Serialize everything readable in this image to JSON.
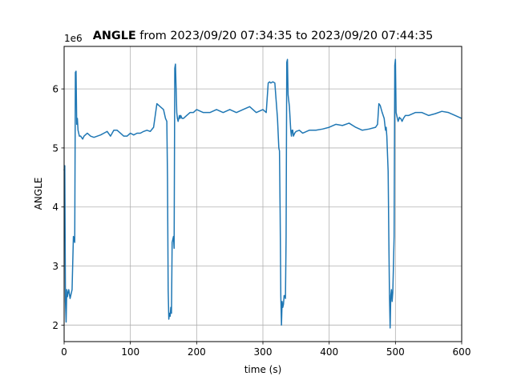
{
  "chart_data": {
    "type": "line",
    "title_bold": "ANGLE",
    "title_rest": " from 2023/09/20 07:34:35 to 2023/09/20 07:44:35",
    "xlabel": "time (s)",
    "ylabel": "ANGLE",
    "y_offset_label": "1e6",
    "xlim": [
      0,
      600
    ],
    "ylim": [
      1.72,
      6.72
    ],
    "x_ticks": [
      0,
      100,
      200,
      300,
      400,
      500,
      600
    ],
    "y_ticks": [
      2,
      3,
      4,
      5,
      6
    ],
    "grid": true,
    "line_color": "#1f77b4",
    "series": [
      {
        "x": [
          0,
          1,
          2,
          3,
          4,
          5,
          6,
          7,
          9,
          12,
          14,
          16,
          17,
          18,
          19,
          20,
          21,
          22,
          23,
          25,
          28,
          30,
          35,
          40,
          45,
          50,
          55,
          60,
          65,
          70,
          75,
          80,
          85,
          90,
          95,
          100,
          105,
          110,
          115,
          120,
          125,
          130,
          135,
          140,
          145,
          150,
          153,
          155,
          156,
          157,
          158,
          159,
          160,
          161,
          162,
          163,
          165,
          166,
          167,
          168,
          170,
          171,
          172,
          173,
          174,
          175,
          176,
          178,
          180,
          185,
          190,
          195,
          200,
          210,
          220,
          230,
          240,
          250,
          260,
          270,
          280,
          290,
          300,
          305,
          308,
          310,
          312,
          315,
          318,
          320,
          322,
          324,
          325,
          326,
          327,
          328,
          329,
          330,
          331,
          332,
          333,
          334,
          335,
          336,
          337,
          338,
          339,
          340,
          341,
          342,
          343,
          344,
          345,
          346,
          348,
          350,
          355,
          360,
          370,
          380,
          390,
          400,
          410,
          420,
          430,
          440,
          450,
          460,
          470,
          473,
          475,
          477,
          480,
          483,
          485,
          486,
          487,
          488,
          489,
          490,
          491,
          492,
          493,
          494,
          495,
          496,
          497,
          498,
          499,
          500,
          501,
          502,
          503,
          504,
          505,
          506,
          507,
          508,
          510,
          512,
          515,
          520,
          530,
          540,
          550,
          560,
          570,
          580,
          590,
          600
        ],
        "values": [
          4.62,
          4.7,
          2.4,
          2.05,
          2.6,
          2.48,
          2.55,
          2.6,
          2.45,
          2.6,
          3.5,
          3.4,
          6.28,
          6.3,
          5.4,
          5.5,
          5.3,
          5.25,
          5.2,
          5.2,
          5.15,
          5.2,
          5.25,
          5.2,
          5.18,
          5.2,
          5.22,
          5.25,
          5.28,
          5.2,
          5.3,
          5.3,
          5.25,
          5.2,
          5.2,
          5.25,
          5.22,
          5.25,
          5.25,
          5.28,
          5.3,
          5.28,
          5.35,
          5.75,
          5.7,
          5.65,
          5.5,
          5.45,
          4.5,
          2.6,
          2.1,
          2.2,
          2.15,
          2.3,
          2.2,
          3.4,
          3.5,
          3.3,
          6.35,
          6.42,
          5.6,
          5.5,
          5.45,
          5.5,
          5.55,
          5.5,
          5.55,
          5.5,
          5.5,
          5.55,
          5.6,
          5.6,
          5.65,
          5.6,
          5.6,
          5.65,
          5.6,
          5.65,
          5.6,
          5.65,
          5.7,
          5.6,
          5.65,
          5.6,
          6.1,
          6.12,
          6.1,
          6.12,
          6.1,
          5.8,
          5.5,
          5.0,
          4.95,
          3.9,
          2.5,
          2.0,
          2.4,
          2.3,
          2.35,
          2.5,
          2.5,
          2.45,
          3.5,
          6.45,
          6.5,
          5.9,
          5.8,
          5.7,
          5.5,
          5.3,
          5.2,
          5.3,
          5.3,
          5.2,
          5.25,
          5.28,
          5.3,
          5.25,
          5.3,
          5.3,
          5.32,
          5.35,
          5.4,
          5.38,
          5.42,
          5.35,
          5.3,
          5.32,
          5.35,
          5.4,
          5.75,
          5.72,
          5.6,
          5.5,
          5.3,
          5.35,
          5.2,
          4.9,
          4.6,
          3.5,
          2.5,
          1.95,
          2.5,
          2.6,
          2.4,
          2.55,
          3.0,
          3.5,
          6.4,
          6.5,
          5.6,
          5.55,
          5.5,
          5.45,
          5.48,
          5.52,
          5.5,
          5.5,
          5.45,
          5.5,
          5.55,
          5.55,
          5.6,
          5.6,
          5.55,
          5.58,
          5.62,
          5.6,
          5.55,
          5.5
        ]
      }
    ]
  }
}
